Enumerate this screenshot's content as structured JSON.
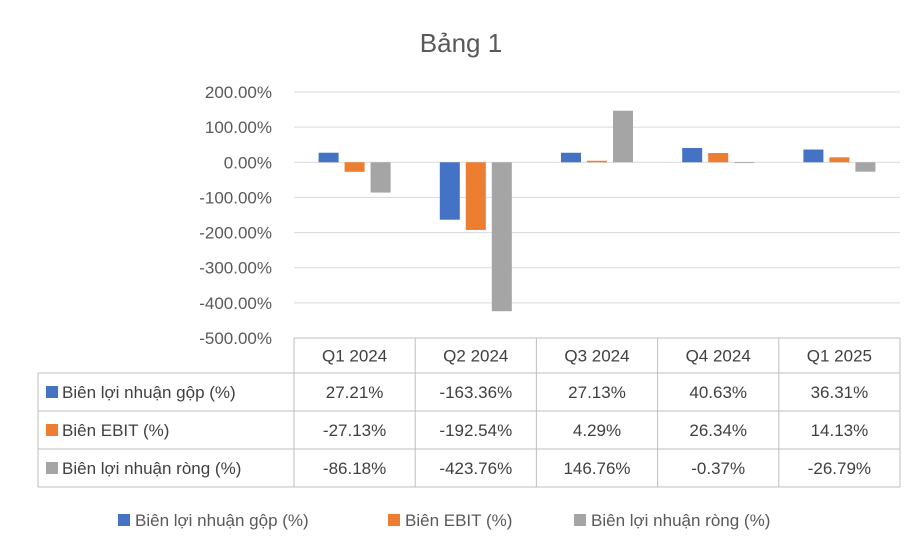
{
  "chart_data": {
    "type": "bar",
    "title": "Bảng 1",
    "categories": [
      "Q1 2024",
      "Q2 2024",
      "Q3 2024",
      "Q4 2024",
      "Q1 2025"
    ],
    "ylim": [
      -500,
      200
    ],
    "yticks": [
      200,
      100,
      0,
      -100,
      -200,
      -300,
      -400,
      -500
    ],
    "ytick_labels": [
      "200.00%",
      "100.00%",
      "0.00%",
      "-100.00%",
      "-200.00%",
      "-300.00%",
      "-400.00%",
      "-500.00%"
    ],
    "grid": true,
    "legend_position": "bottom",
    "data_table": true,
    "series": [
      {
        "name": "Biên lợi nhuận gộp (%)",
        "color": "#4472C4",
        "values": [
          27.21,
          -163.36,
          27.13,
          40.63,
          36.31
        ],
        "labels": [
          "27.21%",
          "-163.36%",
          "27.13%",
          "40.63%",
          "36.31%"
        ]
      },
      {
        "name": "Biên EBIT (%)",
        "color": "#ED7D31",
        "values": [
          -27.13,
          -192.54,
          4.29,
          26.34,
          14.13
        ],
        "labels": [
          "-27.13%",
          "-192.54%",
          "4.29%",
          "26.34%",
          "14.13%"
        ]
      },
      {
        "name": "Biên lợi nhuận ròng (%)",
        "color": "#A5A5A5",
        "values": [
          -86.18,
          -423.76,
          146.76,
          -0.37,
          -26.79
        ],
        "labels": [
          "-86.18%",
          "-423.76%",
          "146.76%",
          "-0.37%",
          "-26.79%"
        ]
      }
    ]
  }
}
